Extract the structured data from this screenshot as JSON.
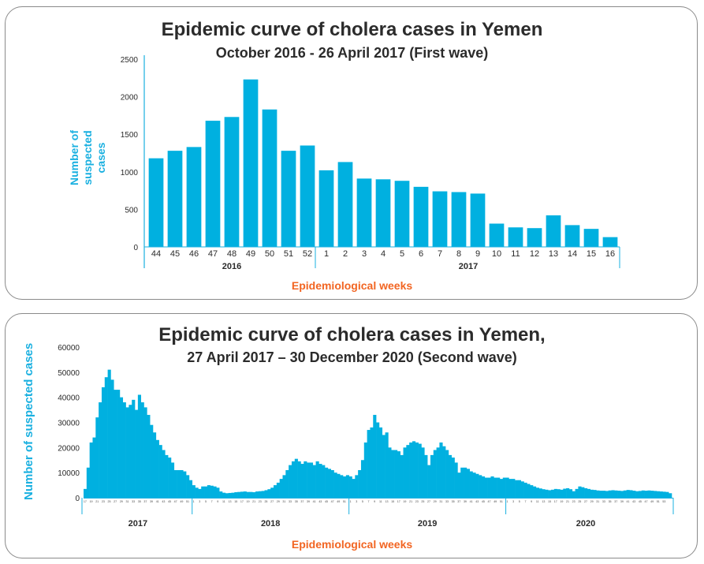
{
  "chart_data": [
    {
      "type": "bar",
      "title": "Epidemic curve of cholera cases in Yemen",
      "subtitle": "October 2016 - 26 April 2017 (First wave)",
      "xlabel": "Epidemiological weeks",
      "ylabel_line1": "Number of",
      "ylabel_line2": "suspected cases",
      "ylim": [
        0,
        2500
      ],
      "yticks": [
        0,
        500,
        1000,
        1500,
        2000,
        2500
      ],
      "grid": false,
      "bar_color": "#00b0e0",
      "categories": [
        "44",
        "45",
        "46",
        "47",
        "48",
        "49",
        "50",
        "51",
        "52",
        "1",
        "2",
        "3",
        "4",
        "5",
        "6",
        "7",
        "8",
        "9",
        "10",
        "11",
        "12",
        "13",
        "14",
        "15",
        "16"
      ],
      "values": [
        1180,
        1280,
        1330,
        1680,
        1730,
        2230,
        1830,
        1280,
        1350,
        1020,
        1130,
        910,
        900,
        880,
        800,
        740,
        730,
        710,
        310,
        260,
        250,
        420,
        290,
        240,
        130
      ],
      "year_groups": [
        {
          "label": "2016",
          "start": 0,
          "end": 8
        },
        {
          "label": "2017",
          "start": 9,
          "end": 24
        }
      ]
    },
    {
      "type": "bar",
      "title": "Epidemic curve of cholera cases in Yemen,",
      "subtitle": "27 April 2017 – 30 December 2020 (Second wave)",
      "xlabel": "Epidemiological weeks",
      "ylabel": "Number of suspected cases",
      "ylim": [
        0,
        60000
      ],
      "yticks": [
        0,
        10000,
        20000,
        30000,
        40000,
        50000,
        60000
      ],
      "grid": false,
      "bar_color": "#00b0e0",
      "year_groups": [
        {
          "label": "2017",
          "start_week": 17,
          "end_week": 52
        },
        {
          "label": "2018",
          "start_week": 1,
          "end_week": 52
        },
        {
          "label": "2019",
          "start_week": 1,
          "end_week": 52
        },
        {
          "label": "2020",
          "start_week": 1,
          "end_week": 53
        }
      ],
      "values": [
        3500,
        12000,
        22000,
        24000,
        32000,
        38000,
        44000,
        48000,
        51000,
        47000,
        43000,
        43000,
        40000,
        38000,
        36000,
        37000,
        39000,
        35000,
        41000,
        38000,
        36000,
        33000,
        29000,
        26000,
        23000,
        21000,
        19000,
        17000,
        16000,
        14000,
        11000,
        11000,
        11000,
        10500,
        9000,
        7000,
        5000,
        4000,
        3500,
        4500,
        4500,
        5000,
        4800,
        4500,
        4000,
        2500,
        2000,
        1800,
        1900,
        2000,
        2200,
        2300,
        2400,
        2500,
        2300,
        2300,
        2200,
        2500,
        2600,
        2700,
        3000,
        3400,
        4000,
        5000,
        6000,
        7500,
        9000,
        11000,
        13000,
        14500,
        15500,
        14500,
        13500,
        14500,
        14000,
        14000,
        13000,
        14500,
        13500,
        13000,
        12000,
        11500,
        11000,
        10000,
        9500,
        9000,
        8500,
        9000,
        8500,
        7500,
        9000,
        11000,
        15000,
        22000,
        27000,
        28000,
        33000,
        30000,
        28000,
        25000,
        26000,
        20000,
        19000,
        19000,
        18500,
        17000,
        20000,
        21000,
        22000,
        22500,
        22000,
        21500,
        20000,
        17000,
        13000,
        17000,
        19000,
        20000,
        22000,
        20500,
        19000,
        17000,
        16000,
        14000,
        10000,
        12000,
        12000,
        11500,
        10500,
        10000,
        9500,
        9000,
        8500,
        8000,
        8000,
        8500,
        8000,
        8000,
        7500,
        8000,
        8000,
        7500,
        7500,
        7000,
        7000,
        6500,
        6000,
        5500,
        5000,
        4500,
        4000,
        3700,
        3400,
        3200,
        3000,
        3200,
        3500,
        3400,
        3200,
        3600,
        3800,
        3400,
        2600,
        3500,
        4500,
        4200,
        3800,
        3500,
        3200,
        3100,
        2900,
        2800,
        2800,
        2700,
        2900,
        3000,
        2900,
        2800,
        2700,
        2900,
        3100,
        3000,
        2800,
        2600,
        2700,
        2900,
        2800,
        2900,
        2800,
        2700,
        2600,
        2500,
        2400,
        2300,
        1800
      ],
      "week_labels": [
        "17",
        "19",
        "21",
        "23",
        "25",
        "27",
        "29",
        "31",
        "33",
        "35",
        "37",
        "39",
        "41",
        "43",
        "45",
        "47",
        "49",
        "51",
        "1",
        "3",
        "5",
        "7",
        "9",
        "11",
        "13",
        "15",
        "17",
        "19",
        "21",
        "23",
        "25",
        "27",
        "29",
        "31",
        "33",
        "35",
        "37",
        "39",
        "41",
        "43",
        "45",
        "47",
        "49",
        "51",
        "1",
        "3",
        "5",
        "7",
        "9",
        "11",
        "13",
        "15",
        "17",
        "19",
        "21",
        "23",
        "25",
        "27",
        "29",
        "31",
        "33",
        "35",
        "37",
        "39",
        "41",
        "43",
        "45",
        "47",
        "49",
        "51",
        "1",
        "3",
        "5",
        "7",
        "9",
        "11",
        "13",
        "15",
        "17",
        "19",
        "21",
        "23",
        "25",
        "27",
        "29",
        "31",
        "33",
        "35",
        "37",
        "39",
        "41",
        "43",
        "45",
        "47",
        "49",
        "51",
        "53"
      ]
    }
  ]
}
